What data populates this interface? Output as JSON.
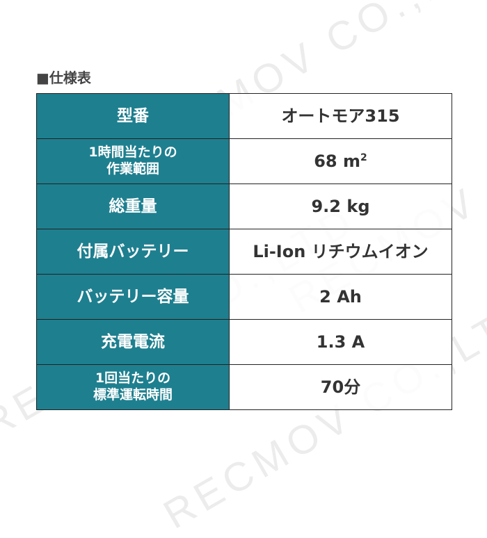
{
  "title": "■仕様表",
  "watermark": "RECMOV CO.,LTD",
  "colors": {
    "header_bg": "#1e7f8f",
    "header_text": "#ffffff",
    "value_text": "#333333"
  },
  "specs": [
    {
      "label": "型番",
      "value": "オートモア315"
    },
    {
      "label_line1": "1時間当たりの",
      "label_line2": "作業範囲",
      "value": "68 m",
      "value_sup": "2"
    },
    {
      "label": "総重量",
      "value": "9.2 kg"
    },
    {
      "label": "付属バッテリー",
      "value": "Li-Ion リチウムイオン"
    },
    {
      "label": "バッテリー容量",
      "value": "2 Ah"
    },
    {
      "label": "充電電流",
      "value": "1.3 A"
    },
    {
      "label_line1": "1回当たりの",
      "label_line2": "標準運転時間",
      "value": "70分"
    }
  ]
}
